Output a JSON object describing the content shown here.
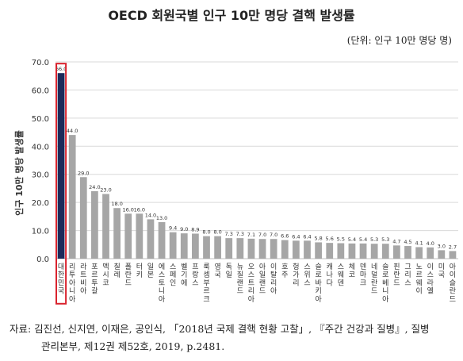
{
  "title": "OECD 회원국별 인구 10만 명당 결핵 발생률",
  "unit": "(단위: 인구 10만 명당 명)",
  "source_line1": "자료: 김진선, 신지연, 이재은, 공인식, 「2018년 국제 결핵 현황 고찰」, 『주간 건강과 질병』, 질병",
  "source_line2": "관리본부, 제12권 제52호, 2019, p.2481.",
  "colors": {
    "highlight": "#1c2a5a",
    "bar": "#a6a6a6",
    "box": "#d9232e",
    "grid": "#d9d9d9"
  },
  "chart_data": {
    "type": "bar",
    "ylabel": "인구 10만 명당 발생률",
    "ylim": [
      0,
      70
    ],
    "yticks": [
      "0.0",
      "10.0",
      "20.0",
      "30.0",
      "40.0",
      "50.0",
      "60.0",
      "70.0"
    ],
    "grid": true,
    "highlight_index": 0,
    "categories": [
      "대한민국",
      "리투아니아",
      "라트비아",
      "포르투갈",
      "멕시코",
      "칠레",
      "폴란드",
      "터키",
      "일본",
      "에스토니아",
      "스페인",
      "벨기에",
      "프랑스",
      "룩셈부르크",
      "영국",
      "독일",
      "뉴질랜드",
      "오스트리아",
      "아일랜드",
      "이탈리아",
      "호주",
      "헝가리",
      "스위스",
      "슬로바키아",
      "캐나다",
      "스웨덴",
      "체코",
      "덴마크",
      "네덜란드",
      "슬로베니아",
      "핀란드",
      "그리스",
      "노르웨이",
      "이스라엘",
      "미국",
      "아이슬란드"
    ],
    "values": [
      66.0,
      44.0,
      29.0,
      24.0,
      23.0,
      18.0,
      16.0,
      16.0,
      14.0,
      13.0,
      9.4,
      9.0,
      8.9,
      8.0,
      8.0,
      7.3,
      7.3,
      7.1,
      7.0,
      7.0,
      6.6,
      6.4,
      6.4,
      5.8,
      5.6,
      5.5,
      5.4,
      5.4,
      5.3,
      5.3,
      4.7,
      4.5,
      4.1,
      4.0,
      3.0,
      2.7
    ],
    "labels": [
      "66.0",
      "44.0",
      "29.0",
      "24.0",
      "23.0",
      "18.0",
      "16.0",
      "16.0",
      "14.0",
      "13.0",
      "9.4",
      "9.0",
      "8.9",
      "8.0",
      "8.0",
      "7.3",
      "7.3",
      "7.1",
      "7.0",
      "7.0",
      "6.6",
      "6.4",
      "6.4",
      "5.8",
      "5.6",
      "5.5",
      "5.4",
      "5.4",
      "5.3",
      "5.3",
      "4.7",
      "4.5",
      "4.1",
      "4.0",
      "3.0",
      "2.7"
    ]
  }
}
